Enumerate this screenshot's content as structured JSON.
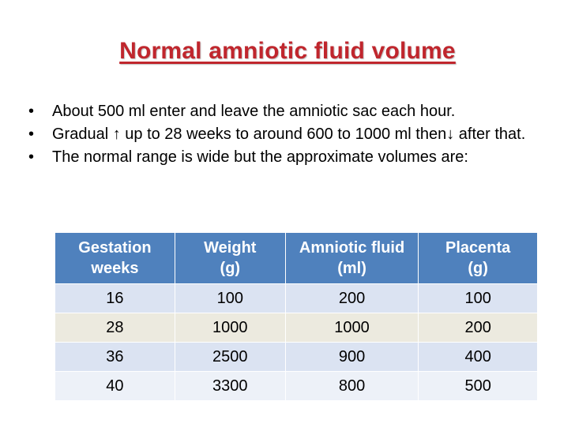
{
  "title": "Normal amniotic fluid volume",
  "bullets": [
    {
      "symbol": "•",
      "text": "About 500 ml enter and leave the amniotic sac each hour."
    },
    {
      "symbol": "•",
      "text": "Gradual ↑ up to 28 weeks to around 600 to 1000 ml then↓ after that."
    },
    {
      "symbol": "•",
      "text": "The normal range is wide but the approximate volumes are:"
    }
  ],
  "table": {
    "headers": [
      {
        "line1": "Gestation",
        "line2": "weeks"
      },
      {
        "line1": "Weight",
        "line2": "(g)"
      },
      {
        "line1": "Amniotic fluid",
        "line2": "(ml)"
      },
      {
        "line1": "Placenta",
        "line2": "(g)"
      }
    ],
    "rows": [
      [
        "16",
        "100",
        "200",
        "100"
      ],
      [
        "28",
        "1000",
        "1000",
        "200"
      ],
      [
        "36",
        "2500",
        "900",
        "400"
      ],
      [
        "40",
        "3300",
        "800",
        "500"
      ]
    ]
  },
  "colors": {
    "title": "#c0262d",
    "header_bg": "#4f81bd",
    "row_blue": "#dbe3f2",
    "row_tan": "#eceadf"
  }
}
